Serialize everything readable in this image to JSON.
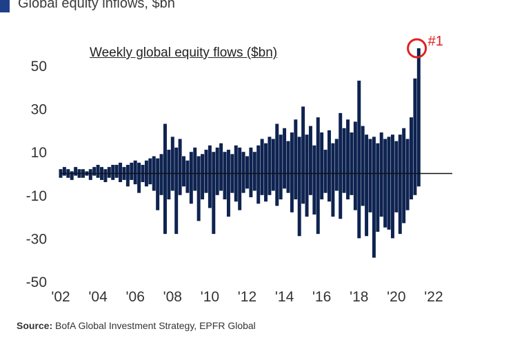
{
  "header": {
    "title": "Global equity inflows, $bn"
  },
  "source": {
    "label": "Source:",
    "text": "BofA Global Investment Strategy, EPFR Global"
  },
  "colors": {
    "bars": "#0e2350",
    "accent": "#1f3f8a",
    "highlight": "#e02020"
  },
  "chart_data": {
    "type": "bar",
    "title": "Weekly global equity flows ($bn)",
    "xlabel": "",
    "ylabel": "",
    "xlim": [
      2002,
      2023
    ],
    "ylim": [
      -50,
      60
    ],
    "yticks": [
      50,
      30,
      10,
      -10,
      -30,
      -50
    ],
    "xticks": [
      "'02",
      "'04",
      "'06",
      "'08",
      "'10",
      "'12",
      "'14",
      "'16",
      "'18",
      "'20",
      "'22"
    ],
    "annotation": {
      "text": "#1",
      "x": 2021.1,
      "y": 58
    },
    "zero_line": true,
    "grid": false,
    "series": [
      {
        "x": [
          2002.0,
          2002.2,
          2002.4,
          2002.6,
          2002.8,
          2003.0,
          2003.2,
          2003.4,
          2003.6,
          2003.8,
          2004.0,
          2004.2,
          2004.4,
          2004.6,
          2004.8,
          2005.0,
          2005.2,
          2005.4,
          2005.6,
          2005.8,
          2006.0,
          2006.2,
          2006.4,
          2006.6,
          2006.8,
          2007.0,
          2007.2,
          2007.4,
          2007.6,
          2007.8,
          2008.0,
          2008.2,
          2008.4,
          2008.6,
          2008.8,
          2009.0,
          2009.2,
          2009.4,
          2009.6,
          2009.8,
          2010.0,
          2010.2,
          2010.4,
          2010.6,
          2010.8,
          2011.0,
          2011.2,
          2011.4,
          2011.6,
          2011.8,
          2012.0,
          2012.2,
          2012.4,
          2012.6,
          2012.8,
          2013.0,
          2013.2,
          2013.4,
          2013.6,
          2013.8,
          2014.0,
          2014.2,
          2014.4,
          2014.6,
          2014.8,
          2015.0,
          2015.2,
          2015.4,
          2015.6,
          2015.8,
          2016.0,
          2016.2,
          2016.4,
          2016.6,
          2016.8,
          2017.0,
          2017.2,
          2017.4,
          2017.6,
          2017.8,
          2018.0,
          2018.2,
          2018.4,
          2018.6,
          2018.8,
          2019.0,
          2019.2,
          2019.4,
          2019.6,
          2019.8,
          2020.0,
          2020.2,
          2020.4,
          2020.6,
          2020.8,
          2021.0,
          2021.2
        ],
        "high": [
          2,
          3,
          2,
          1,
          3,
          2,
          2,
          1,
          2,
          3,
          4,
          3,
          2,
          3,
          4,
          4,
          5,
          3,
          4,
          5,
          6,
          5,
          4,
          6,
          7,
          8,
          7,
          9,
          23,
          11,
          17,
          12,
          16,
          8,
          6,
          10,
          12,
          8,
          9,
          11,
          13,
          10,
          12,
          14,
          10,
          11,
          9,
          13,
          12,
          10,
          8,
          12,
          10,
          13,
          16,
          14,
          17,
          16,
          23,
          18,
          21,
          15,
          19,
          25,
          17,
          31,
          18,
          22,
          13,
          26,
          19,
          11,
          20,
          14,
          16,
          28,
          21,
          25,
          19,
          24,
          43,
          22,
          18,
          16,
          17,
          14,
          19,
          16,
          17,
          18,
          15,
          18,
          21,
          16,
          26,
          44,
          58
        ],
        "low": [
          -2,
          -1,
          -2,
          -3,
          -1,
          -2,
          -2,
          -1,
          -3,
          -1,
          -2,
          -3,
          -4,
          -2,
          -3,
          -2,
          -4,
          -3,
          -6,
          -3,
          -5,
          -9,
          -4,
          -6,
          -5,
          -8,
          -17,
          -10,
          -28,
          -12,
          -8,
          -28,
          -10,
          -6,
          -9,
          -14,
          -8,
          -22,
          -12,
          -9,
          -16,
          -28,
          -10,
          -8,
          -12,
          -20,
          -9,
          -13,
          -17,
          -9,
          -7,
          -11,
          -8,
          -14,
          -10,
          -13,
          -10,
          -8,
          -15,
          -12,
          -7,
          -9,
          -18,
          -12,
          -29,
          -14,
          -20,
          -10,
          -19,
          -28,
          -12,
          -9,
          -13,
          -20,
          -8,
          -21,
          -9,
          -12,
          -10,
          -17,
          -30,
          -15,
          -29,
          -18,
          -39,
          -27,
          -20,
          -25,
          -26,
          -30,
          -18,
          -28,
          -23,
          -17,
          -12,
          -10,
          -6
        ]
      }
    ]
  }
}
